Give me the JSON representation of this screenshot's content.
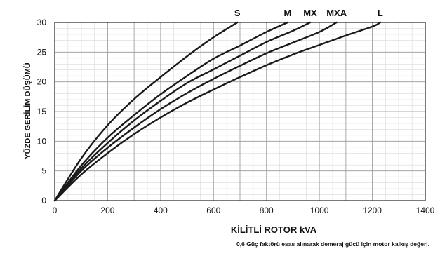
{
  "chart_data": {
    "type": "line",
    "title": "",
    "xlabel": "KİLİTLİ ROTOR kVA",
    "ylabel": "YÜZDE GERİLİM DÜŞÜMÜ",
    "footnote": "0,6 Güç faktörü esas alınarak demeraj gücü için motor kalkış değeri.",
    "xlim": [
      0,
      1400
    ],
    "ylim": [
      0,
      30
    ],
    "x_ticks": [
      0,
      200,
      400,
      600,
      800,
      1000,
      1200,
      1400
    ],
    "y_ticks": [
      0,
      5,
      10,
      15,
      20,
      25,
      30
    ],
    "grid": true,
    "minor_grid": true,
    "legend": "curve-end labels",
    "colors": {
      "curve": "#1a1a1a",
      "major_grid": "#9a9a9a",
      "minor_grid": "#d9d9d9",
      "axis": "#222222"
    },
    "series": [
      {
        "name": "S",
        "points": [
          [
            0,
            0
          ],
          [
            100,
            7.1
          ],
          [
            200,
            12.7
          ],
          [
            300,
            17.1
          ],
          [
            400,
            20.8
          ],
          [
            500,
            24.3
          ],
          [
            600,
            27.5
          ],
          [
            690,
            30
          ]
        ]
      },
      {
        "name": "M",
        "points": [
          [
            0,
            0
          ],
          [
            100,
            5.9
          ],
          [
            200,
            10.6
          ],
          [
            300,
            14.4
          ],
          [
            400,
            17.9
          ],
          [
            500,
            21.0
          ],
          [
            600,
            23.9
          ],
          [
            700,
            26.1
          ],
          [
            800,
            28.4
          ],
          [
            880,
            30
          ]
        ]
      },
      {
        "name": "MX",
        "points": [
          [
            0,
            0
          ],
          [
            100,
            5.4
          ],
          [
            200,
            9.7
          ],
          [
            300,
            13.5
          ],
          [
            400,
            16.8
          ],
          [
            500,
            19.8
          ],
          [
            600,
            22.1
          ],
          [
            700,
            24.4
          ],
          [
            800,
            26.7
          ],
          [
            900,
            28.6
          ],
          [
            965,
            30
          ]
        ]
      },
      {
        "name": "MXA",
        "points": [
          [
            0,
            0
          ],
          [
            100,
            5.0
          ],
          [
            200,
            8.9
          ],
          [
            300,
            12.3
          ],
          [
            400,
            15.4
          ],
          [
            500,
            18.1
          ],
          [
            600,
            20.5
          ],
          [
            700,
            22.7
          ],
          [
            800,
            24.8
          ],
          [
            900,
            26.6
          ],
          [
            1000,
            28.4
          ],
          [
            1065,
            30
          ]
        ]
      },
      {
        "name": "L",
        "points": [
          [
            0,
            0
          ],
          [
            100,
            4.4
          ],
          [
            200,
            8.0
          ],
          [
            300,
            11.2
          ],
          [
            400,
            14.0
          ],
          [
            500,
            16.5
          ],
          [
            600,
            18.7
          ],
          [
            700,
            20.8
          ],
          [
            800,
            22.8
          ],
          [
            900,
            24.6
          ],
          [
            1000,
            26.2
          ],
          [
            1100,
            27.8
          ],
          [
            1200,
            29.3
          ],
          [
            1230,
            30
          ]
        ]
      }
    ]
  }
}
